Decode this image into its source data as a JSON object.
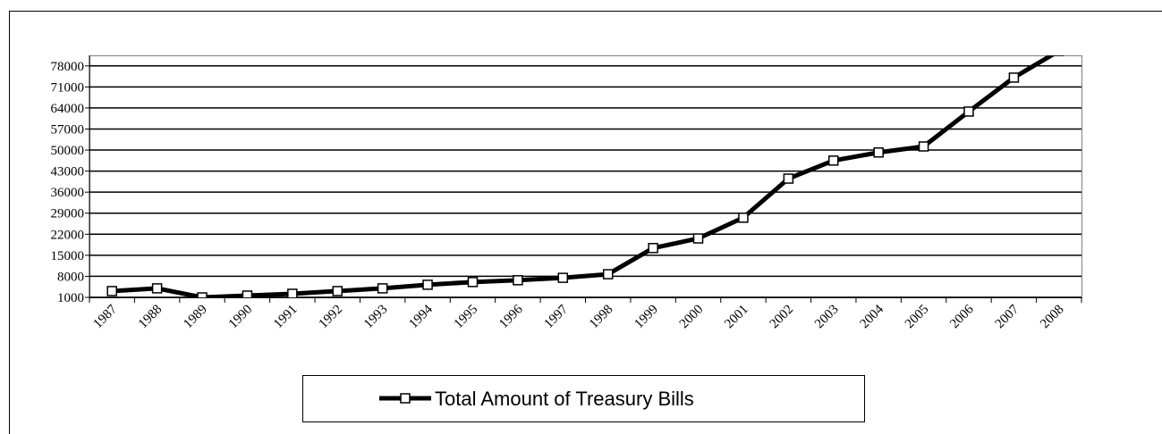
{
  "chart_data": {
    "type": "line",
    "categories": [
      "1987",
      "1988",
      "1989",
      "1990",
      "1991",
      "1992",
      "1993",
      "1994",
      "1995",
      "1996",
      "1997",
      "1998",
      "1999",
      "2000",
      "2001",
      "2002",
      "2003",
      "2004",
      "2005",
      "2006",
      "2007",
      "2008"
    ],
    "series": [
      {
        "name": "Total Amount of Treasury Bills",
        "color": "#000000",
        "values": [
          3100,
          4000,
          1000,
          1600,
          2200,
          3100,
          4000,
          5200,
          6100,
          6700,
          7500,
          8700,
          17400,
          20600,
          27500,
          40500,
          46500,
          49200,
          51200,
          62800,
          74100,
          83000
        ]
      }
    ],
    "ylim": [
      1000,
      81500
    ],
    "yticks": [
      1000,
      8000,
      15000,
      22000,
      29000,
      36000,
      43000,
      50000,
      57000,
      64000,
      71000,
      78000
    ],
    "grid": true
  }
}
